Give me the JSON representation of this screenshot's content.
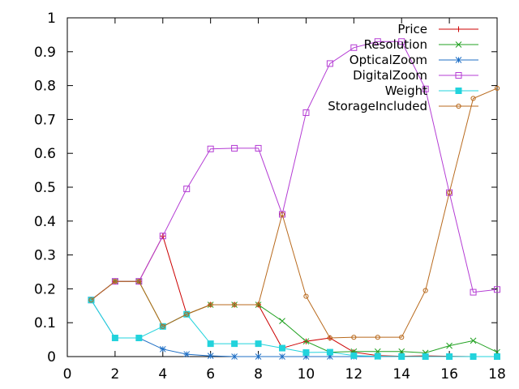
{
  "chart_data": {
    "type": "line",
    "title": "",
    "xlabel": "",
    "ylabel": "",
    "xlim": [
      0,
      18
    ],
    "ylim": [
      0,
      1
    ],
    "x_ticks": [
      "0",
      "2",
      "4",
      "6",
      "8",
      "10",
      "12",
      "14",
      "16",
      "18"
    ],
    "y_ticks": [
      "0",
      "0.1",
      "0.2",
      "0.3",
      "0.4",
      "0.5",
      "0.6",
      "0.7",
      "0.8",
      "0.9",
      "1"
    ],
    "grid": false,
    "legend_position": "top-right",
    "x": [
      1,
      2,
      3,
      4,
      5,
      6,
      7,
      8,
      9,
      10,
      11,
      12,
      13,
      14,
      15,
      16,
      17,
      18
    ],
    "series": [
      {
        "name": "Price",
        "color": "#cc0000",
        "marker": "plus",
        "values": [
          0.167,
          0.222,
          0.222,
          0.356,
          0.125,
          0.153,
          0.153,
          0.153,
          0.025,
          0.045,
          0.055,
          0.013,
          0.003,
          0.001,
          0.002,
          0.001,
          0.0,
          0.0
        ]
      },
      {
        "name": "Resolution",
        "color": "#21a121",
        "marker": "x",
        "values": [
          0.167,
          0.222,
          0.222,
          0.089,
          0.125,
          0.153,
          0.153,
          0.153,
          0.105,
          0.045,
          0.013,
          0.015,
          0.015,
          0.015,
          0.011,
          0.032,
          0.047,
          0.013
        ]
      },
      {
        "name": "OpticalZoom",
        "color": "#1f6fc5",
        "marker": "star",
        "values": [
          0.167,
          0.055,
          0.055,
          0.022,
          0.007,
          0.002,
          0.0,
          0.0,
          0.0,
          0.0,
          0.0,
          0.0,
          0.0,
          0.0,
          0.0,
          0.0,
          0.0,
          0.0
        ]
      },
      {
        "name": "DigitalZoom",
        "color": "#b43cd4",
        "marker": "square-open",
        "values": [
          0.167,
          0.222,
          0.222,
          0.356,
          0.495,
          0.613,
          0.615,
          0.615,
          0.42,
          0.72,
          0.865,
          0.912,
          0.93,
          0.93,
          0.79,
          0.484,
          0.19,
          0.198
        ]
      },
      {
        "name": "Weight",
        "color": "#22d3dc",
        "marker": "square-filled",
        "values": [
          0.167,
          0.055,
          0.055,
          0.089,
          0.125,
          0.038,
          0.038,
          0.038,
          0.025,
          0.012,
          0.013,
          0.003,
          0.001,
          0.0,
          0.0,
          0.0,
          0.0,
          0.0
        ]
      },
      {
        "name": "StorageIncluded",
        "color": "#b8691c",
        "marker": "circle-open",
        "values": [
          0.167,
          0.222,
          0.222,
          0.089,
          0.125,
          0.153,
          0.153,
          0.153,
          0.42,
          0.178,
          0.055,
          0.057,
          0.057,
          0.057,
          0.195,
          0.484,
          0.762,
          0.792
        ]
      }
    ]
  }
}
